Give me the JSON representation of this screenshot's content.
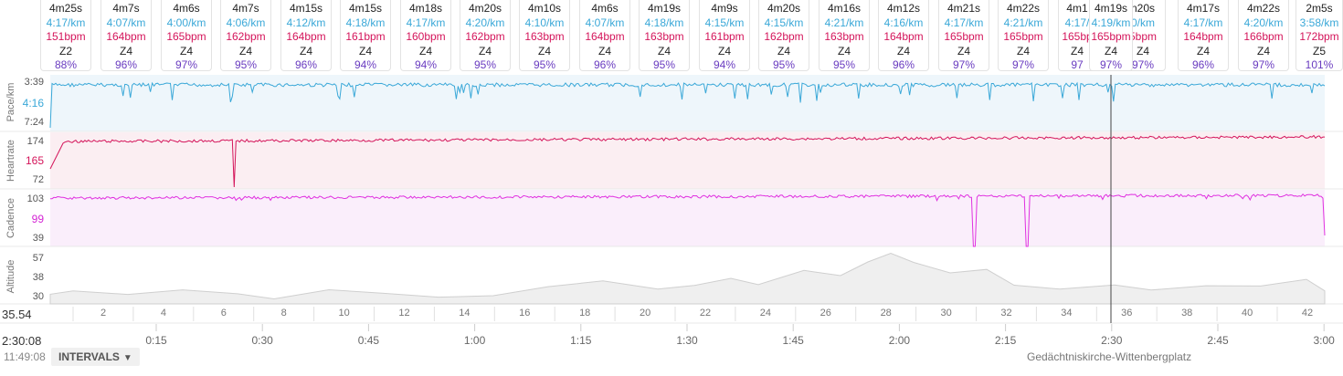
{
  "axes": {
    "pace": {
      "label": "Pace/km",
      "ticks": [
        "3:39",
        "4:16",
        "7:24"
      ],
      "color": "#3aa8d8"
    },
    "heartrate": {
      "label": "Heartrate",
      "ticks": [
        "174",
        "165",
        "72"
      ],
      "color": "#d4145a"
    },
    "cadence": {
      "label": "Cadence",
      "ticks": [
        "103",
        "99",
        "39"
      ],
      "color": "#d426d4"
    },
    "altitude": {
      "label": "Altitude",
      "ticks": [
        "57",
        "38",
        "30"
      ]
    }
  },
  "intervals": [
    {
      "dur": "4m25s",
      "pace": "4:17/km",
      "hr": "151bpm",
      "zone": "Z2",
      "pct": "88%"
    },
    {
      "dur": "4m7s",
      "pace": "4:07/km",
      "hr": "164bpm",
      "zone": "Z4",
      "pct": "96%"
    },
    {
      "dur": "4m6s",
      "pace": "4:00/km",
      "hr": "165bpm",
      "zone": "Z4",
      "pct": "97%"
    },
    {
      "dur": "4m7s",
      "pace": "4:06/km",
      "hr": "162bpm",
      "zone": "Z4",
      "pct": "95%"
    },
    {
      "dur": "4m15s",
      "pace": "4:12/km",
      "hr": "164bpm",
      "zone": "Z4",
      "pct": "96%"
    },
    {
      "dur": "4m15s",
      "pace": "4:18/km",
      "hr": "161bpm",
      "zone": "Z4",
      "pct": "94%"
    },
    {
      "dur": "4m18s",
      "pace": "4:17/km",
      "hr": "160bpm",
      "zone": "Z4",
      "pct": "94%"
    },
    {
      "dur": "4m20s",
      "pace": "4:20/km",
      "hr": "162bpm",
      "zone": "Z4",
      "pct": "95%"
    },
    {
      "dur": "4m10s",
      "pace": "4:10/km",
      "hr": "163bpm",
      "zone": "Z4",
      "pct": "95%"
    },
    {
      "dur": "4m6s",
      "pace": "4:07/km",
      "hr": "164bpm",
      "zone": "Z4",
      "pct": "96%"
    },
    {
      "dur": "4m19s",
      "pace": "4:18/km",
      "hr": "163bpm",
      "zone": "Z4",
      "pct": "95%"
    },
    {
      "dur": "4m9s",
      "pace": "4:15/km",
      "hr": "161bpm",
      "zone": "Z4",
      "pct": "94%"
    },
    {
      "dur": "4m20s",
      "pace": "4:15/km",
      "hr": "162bpm",
      "zone": "Z4",
      "pct": "95%"
    },
    {
      "dur": "4m16s",
      "pace": "4:21/km",
      "hr": "163bpm",
      "zone": "Z4",
      "pct": "95%"
    },
    {
      "dur": "4m12s",
      "pace": "4:16/km",
      "hr": "164bpm",
      "zone": "Z4",
      "pct": "96%"
    },
    {
      "dur": "4m21s",
      "pace": "4:17/km",
      "hr": "165bpm",
      "zone": "Z4",
      "pct": "97%"
    },
    {
      "dur": "4m22s",
      "pace": "4:21/km",
      "hr": "165bpm",
      "zone": "Z4",
      "pct": "97%"
    },
    {
      "dur": "4m1",
      "pace": "4:17/",
      "hr": "165bp",
      "zone": "Z4",
      "pct": "97"
    },
    {
      "dur": "4m19s",
      "pace": "4:19/km",
      "hr": "165bpm",
      "zone": "Z4",
      "pct": "97%"
    },
    {
      "dur": "n20s",
      "pace": "0/km",
      "hr": "5bpm",
      "zone": "Z4",
      "pct": "97%"
    },
    {
      "dur": "4m17s",
      "pace": "4:17/km",
      "hr": "164bpm",
      "zone": "Z4",
      "pct": "96%"
    },
    {
      "dur": "4m22s",
      "pace": "4:20/km",
      "hr": "166bpm",
      "zone": "Z4",
      "pct": "97%"
    },
    {
      "dur": "2m5s",
      "pace": "3:58/km",
      "hr": "172bpm",
      "zone": "Z5",
      "pct": "101%"
    }
  ],
  "distance": {
    "total": "35.54",
    "markers": [
      "2",
      "4",
      "6",
      "8",
      "10",
      "12",
      "14",
      "16",
      "18",
      "20",
      "22",
      "24",
      "26",
      "28",
      "30",
      "32",
      "34",
      "36",
      "38",
      "40",
      "42"
    ]
  },
  "time_axis": {
    "total": "2:30:08",
    "ticks": [
      "0:15",
      "0:30",
      "0:45",
      "1:00",
      "1:15",
      "1:30",
      "1:45",
      "2:00",
      "2:15",
      "2:30",
      "2:45",
      "3:00"
    ]
  },
  "footer": {
    "clock": "11:49:08",
    "intervals_button": "INTERVALS",
    "location": "Gedächtniskirche-Wittenbergplatz"
  },
  "colors": {
    "pace": "#3aa8d8",
    "pace_fill": "#eef6fb",
    "heartrate": "#d4145a",
    "heartrate_fill": "#fbeef2",
    "cadence": "#e030e0",
    "cadence_fill": "#faeefb",
    "altitude": "#cfcfcf",
    "altitude_fill": "#efefef"
  }
}
